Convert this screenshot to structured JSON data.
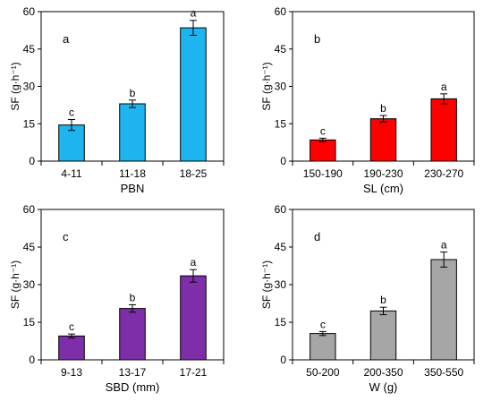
{
  "chart_data": [
    {
      "type": "bar",
      "panel_label": "a",
      "categories": [
        "4-11",
        "11-18",
        "18-25"
      ],
      "values": [
        14.5,
        23,
        53.5
      ],
      "errors": [
        2.2,
        1.5,
        3.0
      ],
      "significance": [
        "c",
        "b",
        "a"
      ],
      "xlabel": "PBN",
      "ylabel": "SF (g·h⁻¹)",
      "ylim": [
        0,
        60
      ],
      "yticks": [
        "0",
        "15",
        "30",
        "45",
        "60"
      ],
      "bar_color": "#1eb4f0",
      "grid": false
    },
    {
      "type": "bar",
      "panel_label": "b",
      "categories": [
        "150-190",
        "190-230",
        "230-270"
      ],
      "values": [
        8.5,
        17,
        25
      ],
      "errors": [
        0.7,
        1.3,
        2.0
      ],
      "significance": [
        "c",
        "b",
        "a"
      ],
      "xlabel": "SL (cm)",
      "ylabel": "SF (g·h⁻¹)",
      "ylim": [
        0,
        60
      ],
      "yticks": [
        "0",
        "15",
        "30",
        "45",
        "60"
      ],
      "bar_color": "#ff0000",
      "grid": false
    },
    {
      "type": "bar",
      "panel_label": "c",
      "categories": [
        "9-13",
        "13-17",
        "17-21"
      ],
      "values": [
        9.5,
        20.5,
        33.5
      ],
      "errors": [
        0.8,
        1.5,
        2.5
      ],
      "significance": [
        "c",
        "b",
        "a"
      ],
      "xlabel": "SBD (mm)",
      "ylabel": "SF (g·h⁻¹)",
      "ylim": [
        0,
        60
      ],
      "yticks": [
        "0",
        "15",
        "30",
        "45",
        "60"
      ],
      "bar_color": "#7e2ea8",
      "grid": false
    },
    {
      "type": "bar",
      "panel_label": "d",
      "categories": [
        "50-200",
        "200-350",
        "350-550"
      ],
      "values": [
        10.5,
        19.5,
        40
      ],
      "errors": [
        0.8,
        1.5,
        3.0
      ],
      "significance": [
        "c",
        "b",
        "a"
      ],
      "xlabel": "W (g)",
      "ylabel": "SF (g·h⁻¹)",
      "ylim": [
        0,
        60
      ],
      "yticks": [
        "0",
        "15",
        "30",
        "45",
        "60"
      ],
      "bar_color": "#a6a6a6",
      "grid": false
    }
  ]
}
